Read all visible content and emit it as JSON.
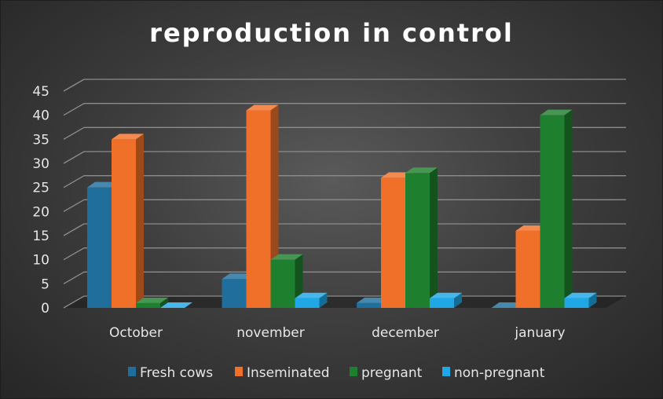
{
  "chart_data": {
    "type": "bar",
    "title": "reproduction in control",
    "categories": [
      "October",
      "november",
      "december",
      "january"
    ],
    "series": [
      {
        "name": "Fresh cows",
        "values": [
          25,
          6,
          1,
          0
        ],
        "color": "#1f6e9c"
      },
      {
        "name": "Inseminated",
        "values": [
          35,
          41,
          27,
          16
        ],
        "color": "#f0702a"
      },
      {
        "name": "pregnant",
        "values": [
          1,
          10,
          28,
          40
        ],
        "color": "#1e7f2e"
      },
      {
        "name": "non-pregnant",
        "values": [
          0,
          2,
          2,
          2
        ],
        "color": "#1fa7e6"
      }
    ],
    "ylim": [
      0,
      45
    ],
    "yticks": [
      "0",
      "5",
      "10",
      "15",
      "20",
      "25",
      "30",
      "35",
      "40",
      "45"
    ],
    "grid": true,
    "legend": "bottom"
  }
}
